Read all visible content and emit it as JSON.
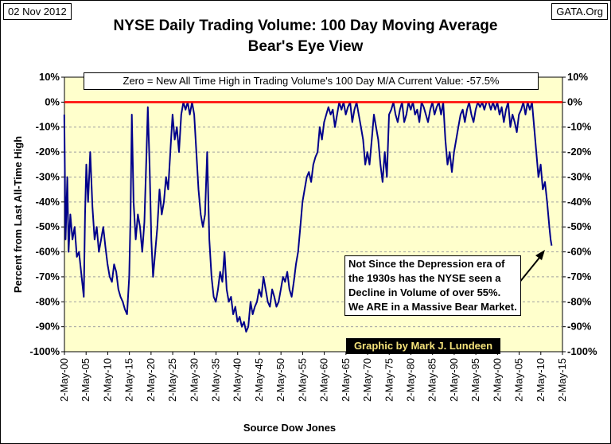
{
  "date_label": "02 Nov 2012",
  "source_label": "GATA.Org",
  "title_line1": "NYSE Daily Trading Volume: 100 Day Moving Average",
  "title_line2": "Bear's Eye View",
  "colors": {
    "plot_bg": "#ffffcc",
    "series": "#00008b",
    "zero_line": "#ff0000",
    "grid": "#a0a0a0"
  },
  "chart_data": {
    "type": "line",
    "title": "NYSE Daily Trading Volume: 100 Day Moving Average — Bear's Eye View",
    "xlabel": "Source Dow Jones",
    "ylabel": "Percent from Last All-Time High",
    "ylim": [
      -100,
      10
    ],
    "xlim": [
      1900.34,
      2015.34
    ],
    "y_ticks": [
      "10%",
      "0%",
      "-10%",
      "-20%",
      "-30%",
      "-40%",
      "-50%",
      "-60%",
      "-70%",
      "-80%",
      "-90%",
      "-100%"
    ],
    "x_tick_labels": [
      "2-May-00",
      "2-May-05",
      "2-May-10",
      "2-May-15",
      "2-May-20",
      "2-May-25",
      "2-May-30",
      "2-May-35",
      "2-May-40",
      "2-May-45",
      "2-May-50",
      "2-May-55",
      "2-May-60",
      "2-May-65",
      "2-May-70",
      "2-May-75",
      "2-May-80",
      "2-May-85",
      "2-May-90",
      "2-May-95",
      "2-May-00",
      "2-May-05",
      "2-May-10",
      "2-May-15"
    ],
    "annotation_top": "Zero = New All Time High in Trading Volume's 100 Day M/A   Current Value: -57.5%",
    "annotation_note": "Not Since the Depression era of the 1930s has the NYSE seen a Decline in Volume of over 55%. We ARE in a Massive Bear Market.",
    "credit": "Graphic by Mark J. Lundeen",
    "current_value": -57.5,
    "series": [
      {
        "name": "NYSE 100 Day M/A Bear's Eye View",
        "points": [
          [
            1900.3,
            -5
          ],
          [
            1900.6,
            -55
          ],
          [
            1901.0,
            -30
          ],
          [
            1901.3,
            -60
          ],
          [
            1901.7,
            -45
          ],
          [
            1902.2,
            -55
          ],
          [
            1902.7,
            -50
          ],
          [
            1903.2,
            -62
          ],
          [
            1903.7,
            -60
          ],
          [
            1904.3,
            -70
          ],
          [
            1904.8,
            -78
          ],
          [
            1905.1,
            -45
          ],
          [
            1905.4,
            -25
          ],
          [
            1905.8,
            -40
          ],
          [
            1906.3,
            -20
          ],
          [
            1906.8,
            -42
          ],
          [
            1907.3,
            -55
          ],
          [
            1907.8,
            -50
          ],
          [
            1908.3,
            -60
          ],
          [
            1908.8,
            -55
          ],
          [
            1909.3,
            -50
          ],
          [
            1909.8,
            -58
          ],
          [
            1910.3,
            -65
          ],
          [
            1910.8,
            -70
          ],
          [
            1911.3,
            -72
          ],
          [
            1911.8,
            -65
          ],
          [
            1912.3,
            -68
          ],
          [
            1912.8,
            -75
          ],
          [
            1913.3,
            -78
          ],
          [
            1913.8,
            -80
          ],
          [
            1914.3,
            -83
          ],
          [
            1914.8,
            -85
          ],
          [
            1915.3,
            -70
          ],
          [
            1915.6,
            -45
          ],
          [
            1915.9,
            -5
          ],
          [
            1916.3,
            -40
          ],
          [
            1916.8,
            -55
          ],
          [
            1917.3,
            -45
          ],
          [
            1917.8,
            -50
          ],
          [
            1918.3,
            -60
          ],
          [
            1918.8,
            -48
          ],
          [
            1919.3,
            -20
          ],
          [
            1919.6,
            -2
          ],
          [
            1920.0,
            -25
          ],
          [
            1920.4,
            -55
          ],
          [
            1920.8,
            -70
          ],
          [
            1921.3,
            -60
          ],
          [
            1921.8,
            -50
          ],
          [
            1922.3,
            -35
          ],
          [
            1922.8,
            -45
          ],
          [
            1923.3,
            -40
          ],
          [
            1923.8,
            -30
          ],
          [
            1924.3,
            -35
          ],
          [
            1924.8,
            -20
          ],
          [
            1925.3,
            -5
          ],
          [
            1925.8,
            -15
          ],
          [
            1926.3,
            -10
          ],
          [
            1926.8,
            -20
          ],
          [
            1927.3,
            -5
          ],
          [
            1927.8,
            0
          ],
          [
            1928.3,
            -3
          ],
          [
            1928.8,
            0
          ],
          [
            1929.3,
            -5
          ],
          [
            1929.8,
            0
          ],
          [
            1930.3,
            -5
          ],
          [
            1930.8,
            -20
          ],
          [
            1931.3,
            -35
          ],
          [
            1931.8,
            -45
          ],
          [
            1932.3,
            -50
          ],
          [
            1932.8,
            -45
          ],
          [
            1933.3,
            -20
          ],
          [
            1933.8,
            -55
          ],
          [
            1934.3,
            -70
          ],
          [
            1934.8,
            -78
          ],
          [
            1935.3,
            -80
          ],
          [
            1935.8,
            -75
          ],
          [
            1936.3,
            -68
          ],
          [
            1936.8,
            -72
          ],
          [
            1937.3,
            -60
          ],
          [
            1937.8,
            -75
          ],
          [
            1938.3,
            -80
          ],
          [
            1938.8,
            -78
          ],
          [
            1939.3,
            -85
          ],
          [
            1939.8,
            -82
          ],
          [
            1940.3,
            -88
          ],
          [
            1940.8,
            -86
          ],
          [
            1941.3,
            -90
          ],
          [
            1941.8,
            -88
          ],
          [
            1942.3,
            -92
          ],
          [
            1942.8,
            -90
          ],
          [
            1943.3,
            -80
          ],
          [
            1943.8,
            -85
          ],
          [
            1944.3,
            -82
          ],
          [
            1944.8,
            -80
          ],
          [
            1945.3,
            -75
          ],
          [
            1945.8,
            -78
          ],
          [
            1946.3,
            -70
          ],
          [
            1946.8,
            -75
          ],
          [
            1947.3,
            -80
          ],
          [
            1947.8,
            -82
          ],
          [
            1948.3,
            -75
          ],
          [
            1948.8,
            -78
          ],
          [
            1949.3,
            -82
          ],
          [
            1949.8,
            -80
          ],
          [
            1950.3,
            -75
          ],
          [
            1950.8,
            -70
          ],
          [
            1951.3,
            -72
          ],
          [
            1951.8,
            -68
          ],
          [
            1952.3,
            -75
          ],
          [
            1952.8,
            -78
          ],
          [
            1953.3,
            -72
          ],
          [
            1953.8,
            -65
          ],
          [
            1954.3,
            -60
          ],
          [
            1954.8,
            -50
          ],
          [
            1955.3,
            -40
          ],
          [
            1955.8,
            -35
          ],
          [
            1956.3,
            -30
          ],
          [
            1956.8,
            -28
          ],
          [
            1957.3,
            -32
          ],
          [
            1957.8,
            -25
          ],
          [
            1958.3,
            -22
          ],
          [
            1958.8,
            -20
          ],
          [
            1959.3,
            -10
          ],
          [
            1959.8,
            -15
          ],
          [
            1960.3,
            -8
          ],
          [
            1960.8,
            -5
          ],
          [
            1961.3,
            -2
          ],
          [
            1961.8,
            -5
          ],
          [
            1962.3,
            -3
          ],
          [
            1962.8,
            -10
          ],
          [
            1963.3,
            -5
          ],
          [
            1963.8,
            0
          ],
          [
            1964.3,
            -3
          ],
          [
            1964.8,
            0
          ],
          [
            1965.3,
            -5
          ],
          [
            1965.8,
            -2
          ],
          [
            1966.3,
            0
          ],
          [
            1966.8,
            -8
          ],
          [
            1967.3,
            -3
          ],
          [
            1967.8,
            0
          ],
          [
            1968.3,
            -5
          ],
          [
            1968.8,
            -10
          ],
          [
            1969.3,
            -15
          ],
          [
            1969.8,
            -25
          ],
          [
            1970.3,
            -20
          ],
          [
            1970.8,
            -25
          ],
          [
            1971.3,
            -15
          ],
          [
            1971.8,
            -5
          ],
          [
            1972.3,
            -10
          ],
          [
            1972.8,
            -15
          ],
          [
            1973.3,
            -25
          ],
          [
            1973.8,
            -32
          ],
          [
            1974.3,
            -20
          ],
          [
            1974.8,
            -30
          ],
          [
            1975.3,
            -5
          ],
          [
            1975.8,
            -3
          ],
          [
            1976.3,
            0
          ],
          [
            1976.8,
            -5
          ],
          [
            1977.3,
            -8
          ],
          [
            1977.8,
            -3
          ],
          [
            1978.3,
            0
          ],
          [
            1978.8,
            -8
          ],
          [
            1979.3,
            -5
          ],
          [
            1979.8,
            0
          ],
          [
            1980.3,
            -3
          ],
          [
            1980.8,
            0
          ],
          [
            1981.3,
            -5
          ],
          [
            1981.8,
            -3
          ],
          [
            1982.3,
            -8
          ],
          [
            1982.8,
            0
          ],
          [
            1983.3,
            -2
          ],
          [
            1983.8,
            -5
          ],
          [
            1984.3,
            -8
          ],
          [
            1984.8,
            -3
          ],
          [
            1985.3,
            0
          ],
          [
            1985.8,
            -5
          ],
          [
            1986.3,
            -2
          ],
          [
            1986.8,
            0
          ],
          [
            1987.3,
            -5
          ],
          [
            1987.8,
            0
          ],
          [
            1988.3,
            -15
          ],
          [
            1988.8,
            -25
          ],
          [
            1989.3,
            -20
          ],
          [
            1989.8,
            -28
          ],
          [
            1990.3,
            -20
          ],
          [
            1990.8,
            -15
          ],
          [
            1991.3,
            -10
          ],
          [
            1991.8,
            -5
          ],
          [
            1992.3,
            -3
          ],
          [
            1992.8,
            -8
          ],
          [
            1993.3,
            -3
          ],
          [
            1993.8,
            0
          ],
          [
            1994.3,
            -5
          ],
          [
            1994.8,
            -8
          ],
          [
            1995.3,
            -3
          ],
          [
            1995.8,
            0
          ],
          [
            1996.3,
            -2
          ],
          [
            1996.8,
            0
          ],
          [
            1997.3,
            -3
          ],
          [
            1997.8,
            0
          ],
          [
            1998.3,
            0
          ],
          [
            1998.8,
            -3
          ],
          [
            1999.3,
            0
          ],
          [
            1999.8,
            -3
          ],
          [
            2000.3,
            0
          ],
          [
            2000.8,
            -5
          ],
          [
            2001.3,
            -2
          ],
          [
            2001.8,
            -8
          ],
          [
            2002.3,
            -3
          ],
          [
            2002.8,
            0
          ],
          [
            2003.3,
            -10
          ],
          [
            2003.8,
            -5
          ],
          [
            2004.3,
            -8
          ],
          [
            2004.8,
            -12
          ],
          [
            2005.3,
            -5
          ],
          [
            2005.8,
            -3
          ],
          [
            2006.3,
            0
          ],
          [
            2006.8,
            -5
          ],
          [
            2007.3,
            0
          ],
          [
            2007.8,
            -3
          ],
          [
            2008.3,
            0
          ],
          [
            2008.8,
            -10
          ],
          [
            2009.3,
            -20
          ],
          [
            2009.8,
            -30
          ],
          [
            2010.3,
            -25
          ],
          [
            2010.8,
            -35
          ],
          [
            2011.3,
            -32
          ],
          [
            2011.8,
            -40
          ],
          [
            2012.3,
            -50
          ],
          [
            2012.6,
            -55
          ],
          [
            2012.84,
            -57.5
          ]
        ]
      }
    ]
  }
}
